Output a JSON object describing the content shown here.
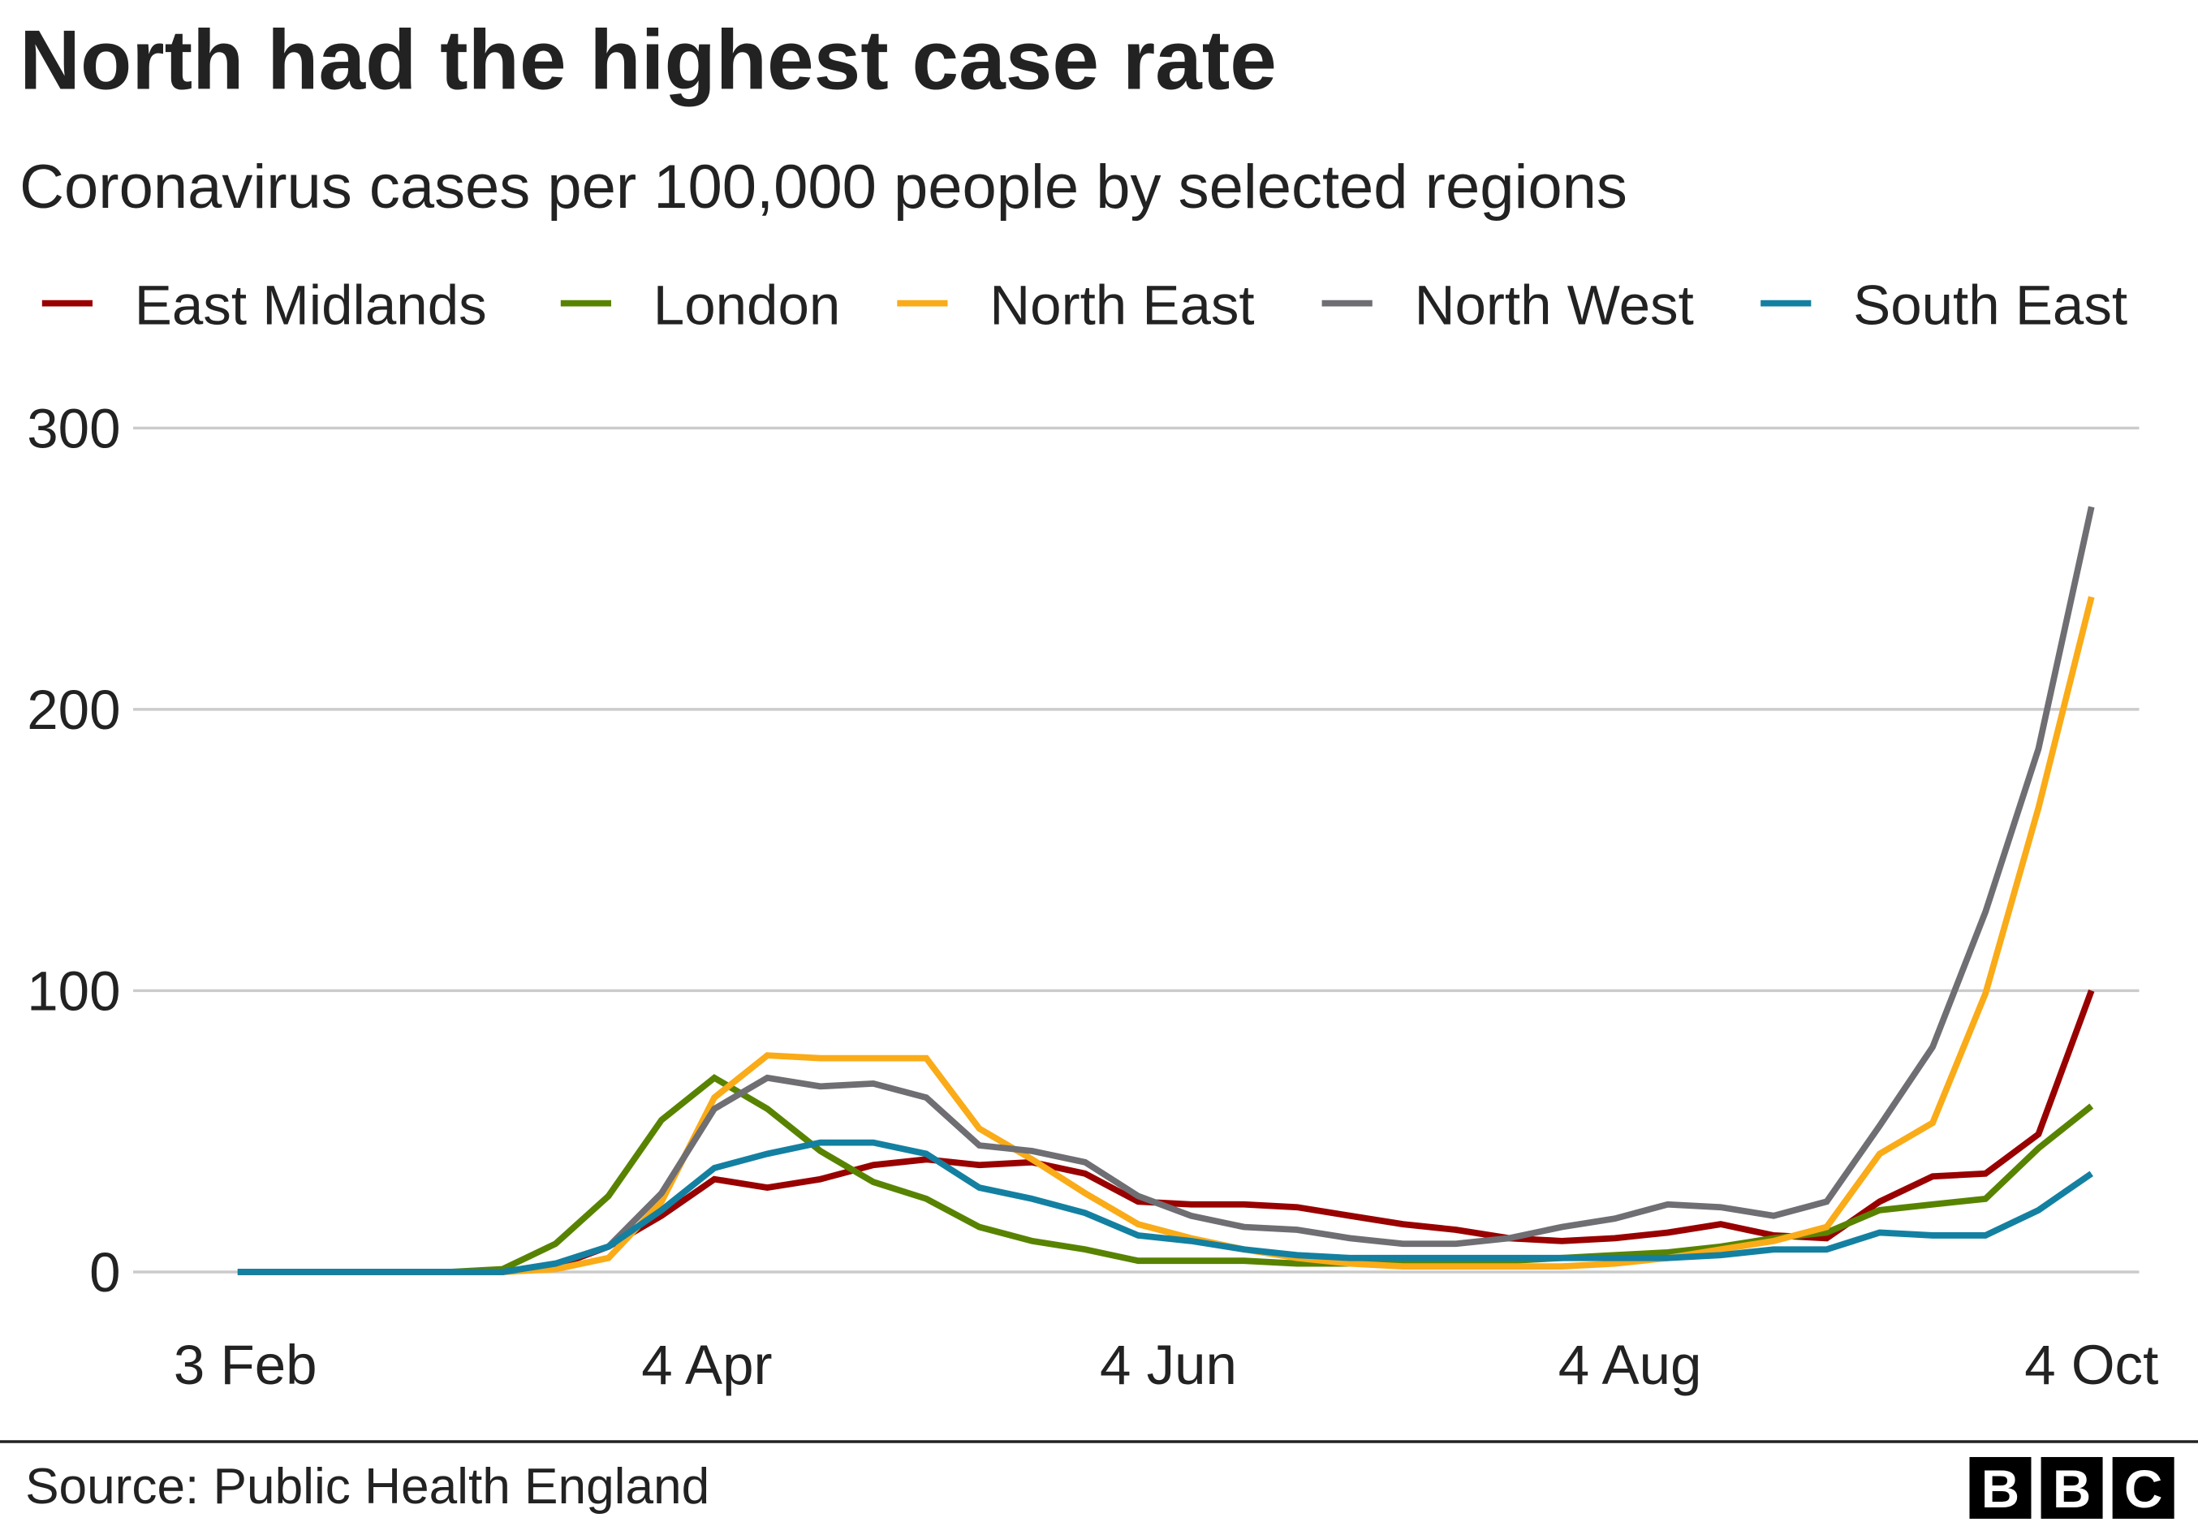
{
  "header": {
    "title": "North had the highest case rate",
    "subtitle": "Coronavirus cases per 100,000 people by selected regions"
  },
  "footer": {
    "source": "Source: Public Health England",
    "logo_text": "BBC"
  },
  "chart_data": {
    "type": "line",
    "title": "North had the highest case rate",
    "subtitle": "Coronavirus cases per 100,000 people by selected regions",
    "xlabel": "",
    "ylabel": "",
    "ylim": [
      0,
      300
    ],
    "yticks": [
      "0",
      "100",
      "200",
      "300"
    ],
    "ytick_values": [
      0,
      100,
      200,
      300
    ],
    "xticks": [
      "3 Feb",
      "4 Apr",
      "4 Jun",
      "4 Aug",
      "4 Oct"
    ],
    "xtick_dates": [
      "2020-02-03",
      "2020-04-04",
      "2020-06-04",
      "2020-08-04",
      "2020-10-04"
    ],
    "grid": true,
    "legend_position": "top",
    "x": [
      "2020-02-02",
      "2020-02-09",
      "2020-02-16",
      "2020-02-23",
      "2020-03-01",
      "2020-03-08",
      "2020-03-15",
      "2020-03-22",
      "2020-03-29",
      "2020-04-05",
      "2020-04-12",
      "2020-04-19",
      "2020-04-26",
      "2020-05-03",
      "2020-05-10",
      "2020-05-17",
      "2020-05-24",
      "2020-05-31",
      "2020-06-07",
      "2020-06-14",
      "2020-06-21",
      "2020-06-28",
      "2020-07-05",
      "2020-07-12",
      "2020-07-19",
      "2020-07-26",
      "2020-08-02",
      "2020-08-09",
      "2020-08-16",
      "2020-08-23",
      "2020-08-30",
      "2020-09-06",
      "2020-09-13",
      "2020-09-20",
      "2020-09-27",
      "2020-10-04"
    ],
    "series": [
      {
        "name": "East Midlands",
        "color": "#990000",
        "values": [
          0,
          0,
          0,
          0,
          0,
          0,
          2,
          9,
          20,
          33,
          30,
          33,
          38,
          40,
          38,
          39,
          35,
          25,
          24,
          24,
          23,
          20,
          17,
          15,
          12,
          11,
          12,
          14,
          17,
          13,
          12,
          25,
          34,
          35,
          49,
          100
        ]
      },
      {
        "name": "London",
        "color": "#588300",
        "values": [
          0,
          0,
          0,
          0,
          0,
          1,
          10,
          27,
          54,
          69,
          58,
          43,
          32,
          26,
          16,
          11,
          8,
          4,
          4,
          4,
          3,
          3,
          3,
          3,
          4,
          5,
          6,
          7,
          9,
          12,
          14,
          22,
          24,
          26,
          44,
          59
        ]
      },
      {
        "name": "North East",
        "color": "#FAAB18",
        "values": [
          0,
          0,
          0,
          0,
          0,
          0,
          1,
          5,
          25,
          62,
          77,
          76,
          76,
          76,
          51,
          40,
          28,
          17,
          12,
          8,
          5,
          3,
          2,
          2,
          2,
          2,
          3,
          5,
          8,
          11,
          16,
          42,
          53,
          99,
          165,
          240
        ]
      },
      {
        "name": "North West",
        "color": "#6E6E73",
        "values": [
          0,
          0,
          0,
          0,
          0,
          0,
          3,
          9,
          28,
          58,
          69,
          66,
          67,
          62,
          45,
          43,
          39,
          27,
          20,
          16,
          15,
          12,
          10,
          10,
          12,
          16,
          19,
          24,
          23,
          20,
          25,
          52,
          80,
          128,
          186,
          272
        ]
      },
      {
        "name": "South East",
        "color": "#1380A1",
        "values": [
          0,
          0,
          0,
          0,
          0,
          0,
          3,
          9,
          22,
          37,
          42,
          46,
          46,
          42,
          30,
          26,
          21,
          13,
          11,
          8,
          6,
          5,
          5,
          5,
          5,
          5,
          5,
          5,
          6,
          8,
          8,
          14,
          13,
          13,
          22,
          35
        ]
      }
    ]
  }
}
